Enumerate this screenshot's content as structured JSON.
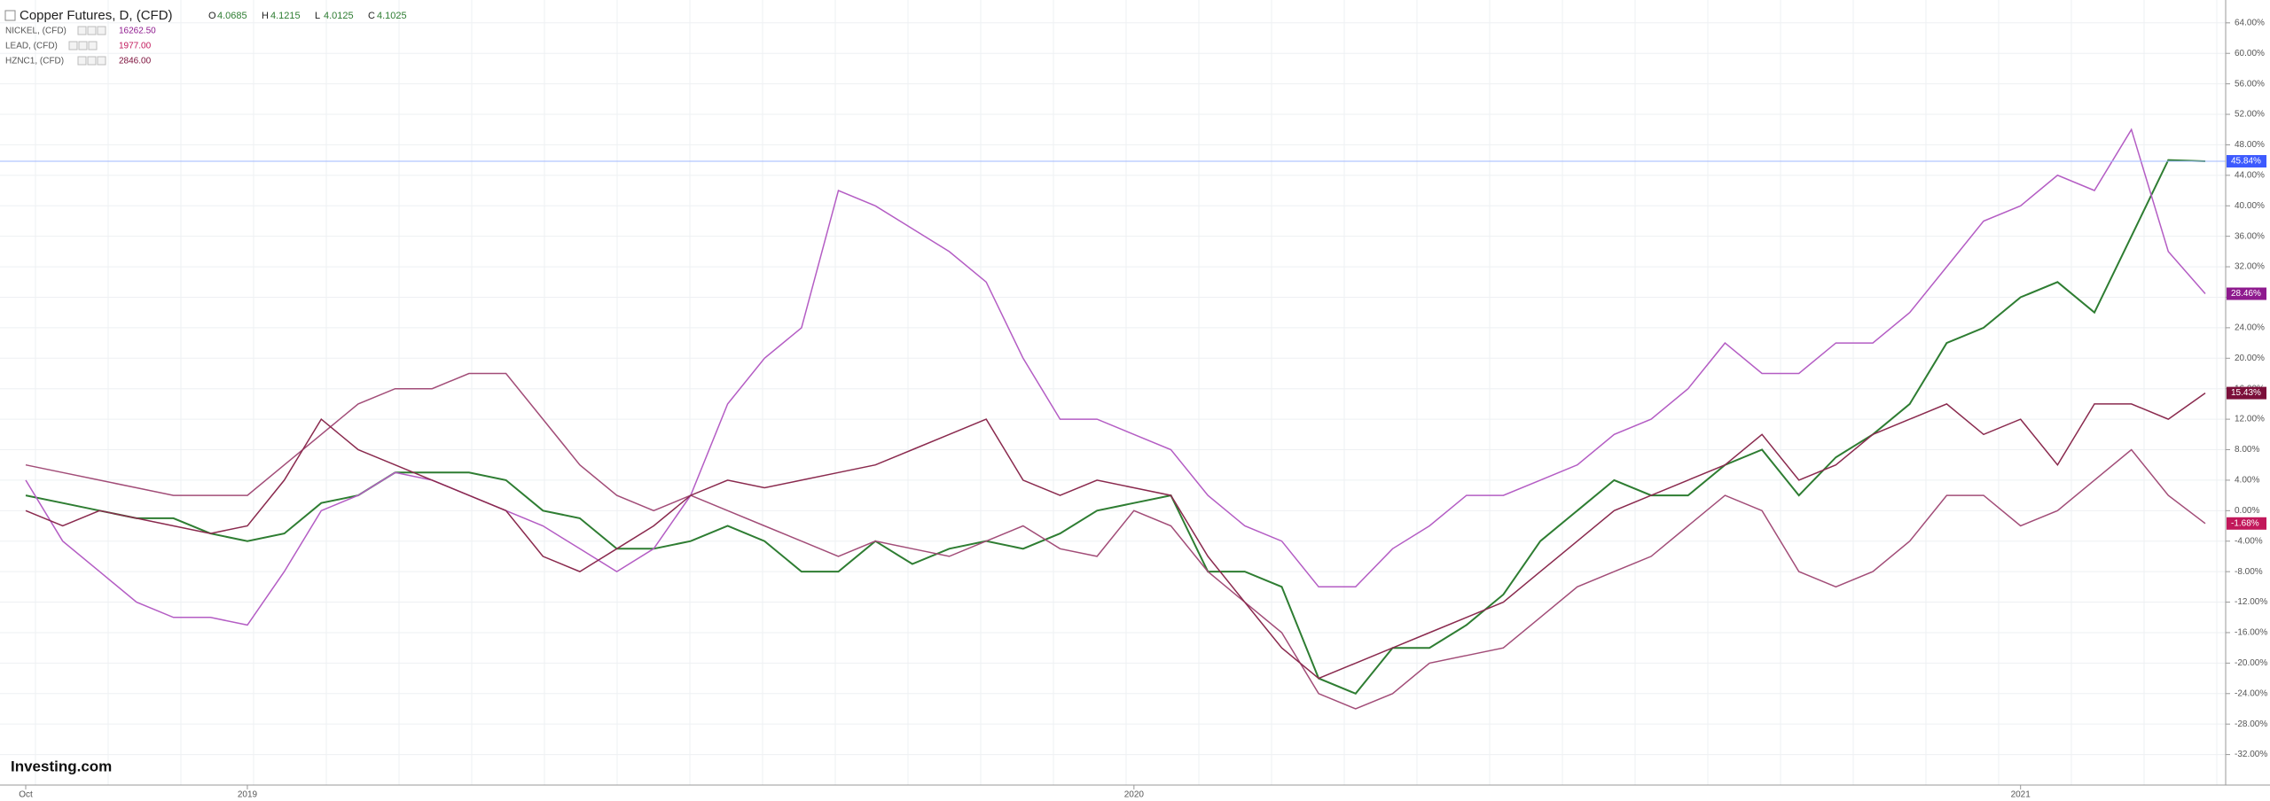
{
  "chart_data": {
    "type": "line",
    "title": "Copper Futures, D, (CFD)",
    "ohlc": [
      {
        "label": "O",
        "value": "4.0685"
      },
      {
        "label": "H",
        "value": "4.1215"
      },
      {
        "label": "L",
        "value": "4.0125"
      },
      {
        "label": "C",
        "value": "4.1025"
      }
    ],
    "legend_values": [
      "16262.50",
      "1977.00",
      "2846.00"
    ],
    "watermark": "Investing.com",
    "categories": [
      "Oct",
      null,
      null,
      null,
      null,
      null,
      "2019",
      null,
      null,
      null,
      null,
      null,
      null,
      null,
      null,
      null,
      null,
      null,
      null,
      null,
      null,
      null,
      null,
      null,
      null,
      null,
      null,
      null,
      null,
      null,
      "2020",
      null,
      null,
      null,
      null,
      null,
      null,
      null,
      null,
      null,
      null,
      null,
      null,
      null,
      null,
      null,
      null,
      null,
      null,
      null,
      null,
      null,
      null,
      null,
      "2021",
      null,
      null,
      null,
      null,
      null
    ],
    "series": [
      {
        "name": "Copper Futures",
        "color": "#2e7d32",
        "values": [
          2,
          1,
          0,
          -1,
          -1,
          -3,
          -4,
          -3,
          1,
          2,
          5,
          5,
          5,
          4,
          0,
          -1,
          -5,
          -5,
          -4,
          -2,
          -4,
          -8,
          -8,
          -4,
          -7,
          -5,
          -4,
          -5,
          -3,
          0,
          1,
          2,
          -8,
          -8,
          -10,
          -22,
          -24,
          -18,
          -18,
          -15,
          -11,
          -4,
          0,
          4,
          2,
          2,
          6,
          8,
          2,
          7,
          10,
          14,
          22,
          24,
          28,
          30,
          26,
          36,
          46,
          45.84
        ],
        "value_labels": [
          null,
          null,
          null,
          null,
          null,
          null,
          null,
          null,
          null,
          null,
          null,
          null,
          null,
          null,
          null,
          null,
          null,
          null,
          null,
          null,
          null,
          null,
          null,
          null,
          null,
          null,
          null,
          null,
          null,
          null,
          null,
          null,
          null,
          null,
          null,
          null,
          null,
          null,
          null,
          null,
          null,
          null,
          null,
          null,
          null,
          null,
          null,
          null,
          null,
          null,
          null,
          null,
          null,
          null,
          null,
          null,
          null,
          null,
          null,
          "45.84%"
        ],
        "badge": "#3d5afe"
      },
      {
        "name": "NICKEL, (CFD)",
        "color": "#b45dc4",
        "values": [
          4,
          -4,
          -8,
          -12,
          -14,
          -14,
          -15,
          -8,
          0,
          2,
          5,
          4,
          2,
          0,
          -2,
          -5,
          -8,
          -5,
          2,
          14,
          20,
          24,
          42,
          40,
          37,
          34,
          30,
          20,
          12,
          12,
          10,
          8,
          2,
          -2,
          -4,
          -10,
          -10,
          -5,
          -2,
          2,
          2,
          4,
          6,
          10,
          12,
          16,
          22,
          18,
          18,
          22,
          22,
          26,
          32,
          38,
          40,
          44,
          42,
          50,
          34,
          28.46
        ],
        "value_labels": [
          null,
          null,
          null,
          null,
          null,
          null,
          null,
          null,
          null,
          null,
          null,
          null,
          null,
          null,
          null,
          null,
          null,
          null,
          null,
          null,
          null,
          null,
          null,
          null,
          null,
          null,
          null,
          null,
          null,
          null,
          null,
          null,
          null,
          null,
          null,
          null,
          null,
          null,
          null,
          null,
          null,
          null,
          null,
          null,
          null,
          null,
          null,
          null,
          null,
          null,
          null,
          null,
          null,
          null,
          null,
          null,
          null,
          null,
          null,
          "28.46%"
        ],
        "badge": "#8e1a8e"
      },
      {
        "name": "LEAD, (CFD)",
        "color": "#a24d78",
        "values": [
          6,
          5,
          4,
          3,
          2,
          2,
          2,
          6,
          10,
          14,
          16,
          16,
          18,
          18,
          12,
          6,
          2,
          0,
          2,
          0,
          -2,
          -4,
          -6,
          -4,
          -5,
          -6,
          -4,
          -2,
          -5,
          -6,
          0,
          -2,
          -8,
          -12,
          -16,
          -24,
          -26,
          -24,
          -20,
          -19,
          -18,
          -14,
          -10,
          -8,
          -6,
          -2,
          2,
          0,
          -8,
          -10,
          -8,
          -4,
          2,
          2,
          -2,
          0,
          4,
          8,
          2,
          -1.68
        ],
        "value_labels": [
          null,
          null,
          null,
          null,
          null,
          null,
          null,
          null,
          null,
          null,
          null,
          null,
          null,
          null,
          null,
          null,
          null,
          null,
          null,
          null,
          null,
          null,
          null,
          null,
          null,
          null,
          null,
          null,
          null,
          null,
          null,
          null,
          null,
          null,
          null,
          null,
          null,
          null,
          null,
          null,
          null,
          null,
          null,
          null,
          null,
          null,
          null,
          null,
          null,
          null,
          null,
          null,
          null,
          null,
          null,
          null,
          null,
          null,
          null,
          "-1.68%"
        ],
        "badge": "#c2185b"
      },
      {
        "name": "HZNC1, (CFD)",
        "color": "#8a2a4e",
        "values": [
          0,
          -2,
          0,
          -1,
          -2,
          -3,
          -2,
          4,
          12,
          8,
          6,
          4,
          2,
          0,
          -6,
          -8,
          -5,
          -2,
          2,
          4,
          3,
          4,
          5,
          6,
          8,
          10,
          12,
          4,
          2,
          4,
          3,
          2,
          -6,
          -12,
          -18,
          -22,
          -20,
          -18,
          -16,
          -14,
          -12,
          -8,
          -4,
          0,
          2,
          4,
          6,
          10,
          4,
          6,
          10,
          12,
          14,
          10,
          12,
          6,
          14,
          14,
          12,
          15.43
        ],
        "value_labels": [
          null,
          null,
          null,
          null,
          null,
          null,
          null,
          null,
          null,
          null,
          null,
          null,
          null,
          null,
          null,
          null,
          null,
          null,
          null,
          null,
          null,
          null,
          null,
          null,
          null,
          null,
          null,
          null,
          null,
          null,
          null,
          null,
          null,
          null,
          null,
          null,
          null,
          null,
          null,
          null,
          null,
          null,
          null,
          null,
          null,
          null,
          null,
          null,
          null,
          null,
          null,
          null,
          null,
          null,
          null,
          null,
          null,
          null,
          null,
          "15.43%"
        ],
        "badge": "#7b0f3a"
      }
    ],
    "ylim": [
      -36,
      67
    ],
    "yticks": [
      {
        "value": -32,
        "label": "-32.00%"
      },
      {
        "value": -28,
        "label": "-28.00%"
      },
      {
        "value": -24,
        "label": "-24.00%"
      },
      {
        "value": -20,
        "label": "-20.00%"
      },
      {
        "value": -16,
        "label": "-16.00%"
      },
      {
        "value": -12,
        "label": "-12.00%"
      },
      {
        "value": -8,
        "label": "-8.00%"
      },
      {
        "value": -4,
        "label": "-4.00%"
      },
      {
        "value": 0,
        "label": "0.00%"
      },
      {
        "value": 4,
        "label": "4.00%"
      },
      {
        "value": 8,
        "label": "8.00%"
      },
      {
        "value": 12,
        "label": "12.00%"
      },
      {
        "value": 16,
        "label": "16.00%"
      },
      {
        "value": 20,
        "label": "20.00%"
      },
      {
        "value": 24,
        "label": "24.00%"
      },
      {
        "value": 28,
        "label": "28.00%"
      },
      {
        "value": 32,
        "label": "32.00%"
      },
      {
        "value": 36,
        "label": "36.00%"
      },
      {
        "value": 40,
        "label": "40.00%"
      },
      {
        "value": 44,
        "label": "44.00%"
      },
      {
        "value": 48,
        "label": "48.00%"
      },
      {
        "value": 52,
        "label": "52.00%"
      },
      {
        "value": 56,
        "label": "56.00%"
      },
      {
        "value": 60,
        "label": "60.00%"
      },
      {
        "value": 64,
        "label": "64.00%"
      }
    ],
    "grid": true
  }
}
